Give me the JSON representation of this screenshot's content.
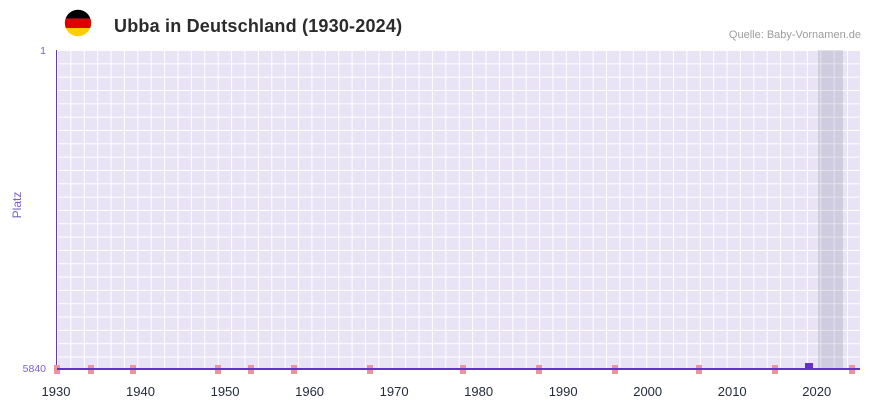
{
  "header": {
    "title": "Ubba in Deutschland (1930-2024)",
    "flag_icon": "german-flag-icon",
    "flag_colors": [
      "#000000",
      "#dd0000",
      "#ffce00"
    ],
    "source": "Quelle: Baby-Vornamen.de"
  },
  "chart_data": {
    "type": "scatter",
    "title": "Ubba in Deutschland (1930-2024)",
    "xlabel": "",
    "ylabel": "Platz",
    "y_axis": {
      "top_label": "1",
      "bottom_label": "5840",
      "inverted": true
    },
    "x_range": [
      1930,
      2025
    ],
    "x_ticks": [
      1930,
      1940,
      1950,
      1960,
      1970,
      1980,
      1990,
      2000,
      2010,
      2020
    ],
    "grid_on": true,
    "legend": null,
    "points": [
      {
        "x": 2019,
        "y": 5840
      }
    ],
    "bottom_marker_years": [
      1930,
      1934,
      1939,
      1949,
      1953,
      1958,
      1967,
      1978,
      1987,
      1996,
      2006,
      2015,
      2024
    ],
    "highlight_band": {
      "start_year": 2020,
      "end_year": 2023
    },
    "colors": {
      "plot_bg": "#e8e4f6",
      "grid": "#ffffff",
      "axis_line": "#6233c9",
      "point": "#6233c9",
      "tick_mark": "#ec93a0",
      "band": "rgba(99,96,125,0.18)",
      "y_text": "#7a5fc7",
      "x_text": "#232c3d",
      "title_text": "#2b2b2b",
      "source_text": "#9c9c9c"
    }
  }
}
